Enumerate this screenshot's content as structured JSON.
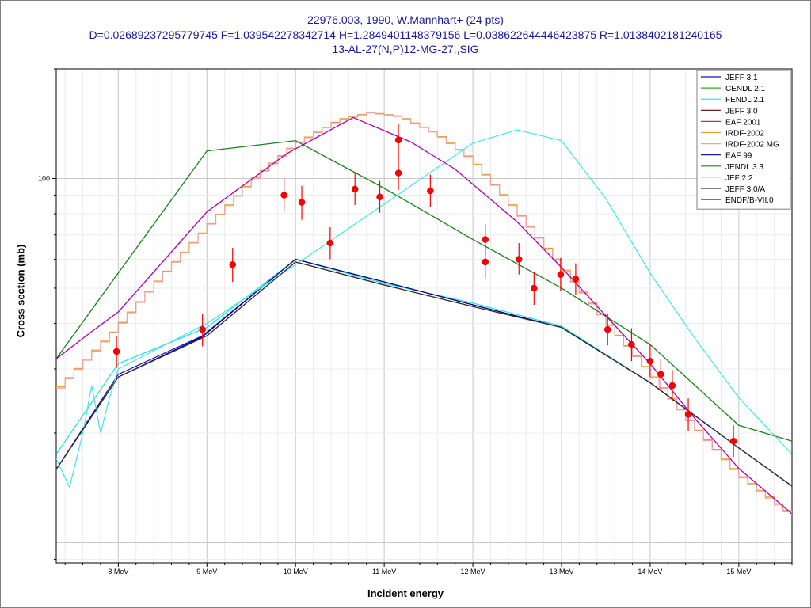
{
  "chart_data": {
    "type": "line",
    "title_lines": [
      "22976.003, 1990, W.Mannhart+ (24 pts)",
      "D=0.02689237295779745 F=1.039542278342714 H=1.2849401148379156 L=0.038622644446423875 R=1.0138402181240165",
      "13-AL-27(N,P)12-MG-27,,SIG"
    ],
    "xlabel": "Incident energy",
    "ylabel": "Cross section (mb)",
    "x_unit": "MeV",
    "xlim": [
      7.3,
      15.6
    ],
    "ylim": [
      8.8,
      200
    ],
    "yscale": "log",
    "grid": true,
    "legend_position": "top-right",
    "x_ticks": [
      {
        "value": 8,
        "label": "8 MeV"
      },
      {
        "value": 9,
        "label": "9 MeV"
      },
      {
        "value": 10,
        "label": "10 MeV"
      },
      {
        "value": 11,
        "label": "11 MeV"
      },
      {
        "value": 12,
        "label": "12 MeV"
      },
      {
        "value": 13,
        "label": "13 MeV"
      },
      {
        "value": 14,
        "label": "14 MeV"
      },
      {
        "value": 15,
        "label": "15 MeV"
      }
    ],
    "y_ticks": [
      {
        "value": 100,
        "label": "100"
      }
    ],
    "series": [
      {
        "name": "JEFF 3.1",
        "color": "#1010c0",
        "points": [
          [
            7.3,
            15.9
          ],
          [
            8.0,
            29.0
          ],
          [
            8.95,
            37.0
          ],
          [
            10.0,
            60.0
          ],
          [
            11.0,
            52.0
          ],
          [
            12.0,
            45.0
          ],
          [
            13.0,
            39.0
          ],
          [
            14.0,
            27.5
          ],
          [
            15.0,
            18.2
          ],
          [
            15.6,
            14.3
          ]
        ]
      },
      {
        "name": "CENDL 2.1",
        "color": "#20b020",
        "points": [
          [
            7.3,
            32.0
          ],
          [
            8.0,
            55.0
          ],
          [
            9.0,
            119
          ],
          [
            10.0,
            127
          ],
          [
            11.0,
            94.0
          ],
          [
            12.0,
            68.0
          ],
          [
            13.0,
            50.0
          ],
          [
            14.0,
            35.0
          ],
          [
            15.0,
            21.0
          ],
          [
            15.6,
            19.0
          ]
        ]
      },
      {
        "name": "FENDL 2.1",
        "color": "#20e0e0",
        "points": [
          [
            7.3,
            17.5
          ],
          [
            8.0,
            31.0
          ],
          [
            9.0,
            39.0
          ],
          [
            10.0,
            60.0
          ],
          [
            11.0,
            51.5
          ],
          [
            12.0,
            45.5
          ],
          [
            13.0,
            39.3
          ],
          [
            14.0,
            27.5
          ],
          [
            15.0,
            18.2
          ],
          [
            15.6,
            14.3
          ]
        ]
      },
      {
        "name": "JEFF 3.0",
        "color": "#600000",
        "points": [
          [
            7.3,
            15.9
          ],
          [
            8.0,
            28.5
          ],
          [
            9.0,
            37.0
          ],
          [
            10.0,
            59.0
          ],
          [
            11.0,
            51.0
          ],
          [
            12.0,
            44.5
          ],
          [
            13.0,
            39.0
          ],
          [
            14.0,
            27.5
          ],
          [
            15.0,
            18.2
          ],
          [
            15.6,
            14.3
          ]
        ]
      },
      {
        "name": "EAF 2001",
        "color": "#c020c0",
        "points": [
          [
            7.3,
            32.0
          ],
          [
            7.7,
            38.0
          ],
          [
            8.0,
            43.0
          ],
          [
            9.0,
            81.0
          ],
          [
            9.9,
            117
          ],
          [
            10.65,
            147
          ],
          [
            11.3,
            126
          ],
          [
            11.8,
            106
          ],
          [
            12.5,
            76.0
          ],
          [
            13.0,
            57.0
          ],
          [
            13.5,
            42.0
          ],
          [
            14.0,
            31.0
          ],
          [
            14.5,
            22.0
          ],
          [
            15.0,
            16.0
          ],
          [
            15.6,
            12.0
          ]
        ]
      },
      {
        "name": "IRDF-2002",
        "color": "#e0a030",
        "points": [
          [
            7.3,
            26.0
          ],
          [
            7.6,
            31.0
          ],
          [
            8.0,
            39.0
          ],
          [
            8.5,
            54.0
          ],
          [
            9.0,
            73.0
          ],
          [
            9.5,
            98.0
          ],
          [
            10.0,
            124
          ],
          [
            10.5,
            145
          ],
          [
            10.85,
            152
          ],
          [
            11.2,
            148
          ],
          [
            11.6,
            133
          ],
          [
            12.0,
            113
          ],
          [
            12.5,
            82.0
          ],
          [
            13.0,
            58.0
          ],
          [
            13.5,
            41.0
          ],
          [
            14.0,
            29.5
          ],
          [
            14.5,
            21.0
          ],
          [
            15.0,
            15.5
          ],
          [
            15.6,
            12.0
          ]
        ]
      },
      {
        "name": "IRDF-2002 MG",
        "color": "#f0a0a0",
        "points": [
          [
            7.3,
            25.8
          ],
          [
            7.6,
            30.8
          ],
          [
            8.0,
            38.8
          ],
          [
            8.5,
            53.8
          ],
          [
            9.0,
            72.8
          ],
          [
            9.5,
            97.6
          ],
          [
            10.0,
            123.5
          ],
          [
            10.5,
            144.5
          ],
          [
            10.85,
            151.5
          ],
          [
            11.2,
            147.5
          ],
          [
            11.6,
            132.5
          ],
          [
            12.0,
            112.5
          ],
          [
            12.5,
            81.6
          ],
          [
            13.0,
            57.6
          ],
          [
            13.5,
            40.8
          ],
          [
            14.0,
            29.4
          ],
          [
            14.5,
            20.9
          ],
          [
            15.0,
            15.4
          ],
          [
            15.6,
            11.9
          ]
        ]
      },
      {
        "name": "EAF 99",
        "color": "#000080",
        "points": [
          [
            7.3,
            15.9
          ],
          [
            8.0,
            28.5
          ],
          [
            8.95,
            36.8
          ],
          [
            10.0,
            60.0
          ],
          [
            11.0,
            52.0
          ],
          [
            12.0,
            45.0
          ],
          [
            13.0,
            39.0
          ],
          [
            14.0,
            27.5
          ],
          [
            15.0,
            18.2
          ],
          [
            15.6,
            14.3
          ]
        ]
      },
      {
        "name": "JENDL 3.3",
        "color": "#208020",
        "points": [
          [
            7.3,
            32.0
          ],
          [
            8.0,
            55.0
          ],
          [
            9.0,
            119
          ],
          [
            10.0,
            127
          ],
          [
            11.0,
            94.0
          ],
          [
            12.0,
            68.0
          ],
          [
            13.0,
            50.0
          ],
          [
            14.0,
            35.0
          ],
          [
            15.0,
            21.0
          ],
          [
            15.6,
            19.0
          ]
        ]
      },
      {
        "name": "JEF 2.2",
        "color": "#40e8e8",
        "points": [
          [
            7.3,
            17.0
          ],
          [
            7.45,
            14.2
          ],
          [
            7.6,
            20.0
          ],
          [
            7.7,
            27.0
          ],
          [
            7.8,
            20.0
          ],
          [
            7.9,
            25.0
          ],
          [
            8.0,
            30.0
          ],
          [
            9.0,
            40.0
          ],
          [
            10.0,
            58.0
          ],
          [
            11.0,
            85.0
          ],
          [
            12.0,
            125
          ],
          [
            12.5,
            136
          ],
          [
            13.0,
            127
          ],
          [
            13.5,
            88.0
          ],
          [
            14.0,
            55.0
          ],
          [
            14.5,
            36.5
          ],
          [
            15.0,
            25.0
          ],
          [
            15.6,
            17.5
          ]
        ]
      },
      {
        "name": "JEFF 3.0/A",
        "color": "#303030",
        "points": [
          [
            7.3,
            15.9
          ],
          [
            8.0,
            28.5
          ],
          [
            9.0,
            37.0
          ],
          [
            10.0,
            59.0
          ],
          [
            11.0,
            51.0
          ],
          [
            12.0,
            44.5
          ],
          [
            13.0,
            39.0
          ],
          [
            14.0,
            27.5
          ],
          [
            15.0,
            18.2
          ],
          [
            15.6,
            14.3
          ]
        ]
      },
      {
        "name": "ENDF/B-VII.0",
        "color": "#b000b0",
        "points": [
          [
            7.3,
            32.0
          ],
          [
            7.7,
            38.0
          ],
          [
            8.0,
            43.0
          ],
          [
            9.0,
            81.0
          ],
          [
            9.9,
            117
          ],
          [
            10.65,
            147
          ],
          [
            11.3,
            126
          ],
          [
            11.8,
            106
          ],
          [
            12.5,
            76.0
          ],
          [
            13.0,
            57.0
          ],
          [
            13.5,
            42.0
          ],
          [
            14.0,
            31.0
          ],
          [
            14.5,
            22.0
          ],
          [
            15.0,
            16.0
          ],
          [
            15.6,
            12.0
          ]
        ]
      }
    ],
    "experimental": {
      "name": "22976.003, 1990, W.Mannhart+",
      "color": "#ff0000",
      "points": [
        {
          "x": 7.98,
          "y": 33.5,
          "lo": 30.2,
          "hi": 37.0
        },
        {
          "x": 8.95,
          "y": 38.5,
          "lo": 34.6,
          "hi": 42.5
        },
        {
          "x": 9.29,
          "y": 58.0,
          "lo": 52.0,
          "hi": 64.5
        },
        {
          "x": 9.87,
          "y": 90.0,
          "lo": 81.0,
          "hi": 100.0
        },
        {
          "x": 10.07,
          "y": 86.0,
          "lo": 77.0,
          "hi": 95.5
        },
        {
          "x": 10.39,
          "y": 66.5,
          "lo": 60.0,
          "hi": 73.5
        },
        {
          "x": 10.67,
          "y": 93.5,
          "lo": 84.5,
          "hi": 104.0
        },
        {
          "x": 10.95,
          "y": 89.0,
          "lo": 80.5,
          "hi": 98.5
        },
        {
          "x": 11.16,
          "y": 103.5,
          "lo": 93.0,
          "hi": 115.0
        },
        {
          "x": 11.16,
          "y": 127.5,
          "lo": 114.5,
          "hi": 141.5
        },
        {
          "x": 11.52,
          "y": 92.5,
          "lo": 83.5,
          "hi": 102.5
        },
        {
          "x": 12.14,
          "y": 68.0,
          "lo": 61.5,
          "hi": 75.0
        },
        {
          "x": 12.14,
          "y": 59.0,
          "lo": 53.0,
          "hi": 65.5
        },
        {
          "x": 12.52,
          "y": 60.0,
          "lo": 54.5,
          "hi": 66.5
        },
        {
          "x": 12.69,
          "y": 50.0,
          "lo": 45.0,
          "hi": 55.5
        },
        {
          "x": 12.99,
          "y": 54.5,
          "lo": 49.0,
          "hi": 60.5
        },
        {
          "x": 13.16,
          "y": 53.0,
          "lo": 48.0,
          "hi": 58.5
        },
        {
          "x": 13.52,
          "y": 38.5,
          "lo": 34.8,
          "hi": 42.5
        },
        {
          "x": 13.79,
          "y": 35.0,
          "lo": 31.5,
          "hi": 38.8
        },
        {
          "x": 14.0,
          "y": 31.5,
          "lo": 28.5,
          "hi": 35.0
        },
        {
          "x": 14.12,
          "y": 29.0,
          "lo": 26.2,
          "hi": 32.0
        },
        {
          "x": 14.25,
          "y": 27.0,
          "lo": 24.4,
          "hi": 29.8
        },
        {
          "x": 14.43,
          "y": 22.5,
          "lo": 20.3,
          "hi": 24.9
        },
        {
          "x": 14.94,
          "y": 19.0,
          "lo": 17.2,
          "hi": 21.0
        }
      ]
    }
  }
}
